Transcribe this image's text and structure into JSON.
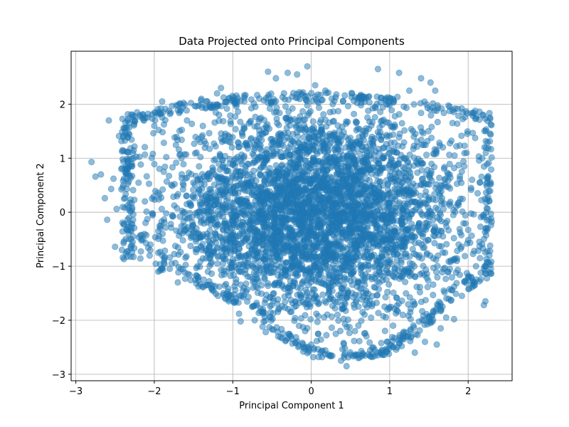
{
  "chart_data": {
    "type": "scatter",
    "title": "Data Projected onto Principal Components",
    "xlabel": "Principal Component 1",
    "ylabel": "Principal Component 2",
    "xlim": [
      -3.06,
      2.56
    ],
    "ylim": [
      -3.12,
      2.98
    ],
    "x_ticks": [
      -3,
      -2,
      -1,
      0,
      1,
      2
    ],
    "y_ticks": [
      -3,
      -2,
      -1,
      0,
      1,
      2
    ],
    "grid": true,
    "marker_color": "#1f77b4",
    "marker_alpha": 0.5,
    "outline_points": [
      [
        -2.8,
        0.93
      ],
      [
        -2.75,
        0.66
      ],
      [
        -2.68,
        0.7
      ],
      [
        -2.63,
        0.26
      ],
      [
        -2.6,
        -0.14
      ],
      [
        -2.58,
        1.7
      ],
      [
        -2.55,
        0.43
      ],
      [
        -2.52,
        0.62
      ],
      [
        -2.5,
        -0.64
      ],
      [
        -2.48,
        0.06
      ],
      [
        -2.45,
        1.41
      ],
      [
        -2.42,
        0.8
      ],
      [
        -2.38,
        1.55
      ],
      [
        -2.35,
        0.43
      ],
      [
        -2.35,
        -0.73
      ],
      [
        -2.3,
        0.01
      ],
      [
        -2.28,
        -0.22
      ],
      [
        -2.25,
        1.68
      ],
      [
        -2.22,
        1.85
      ],
      [
        -2.18,
        -0.43
      ],
      [
        -2.12,
        0.2
      ],
      [
        -2.08,
        1.82
      ],
      [
        -2.05,
        -0.6
      ],
      [
        -2.0,
        1.6
      ],
      [
        -1.95,
        -0.35
      ],
      [
        -1.9,
        -0.8
      ],
      [
        -1.9,
        2.05
      ],
      [
        -1.95,
        -1.1
      ],
      [
        -1.78,
        -0.95
      ],
      [
        -1.72,
        1.98
      ],
      [
        -1.7,
        -1.3
      ],
      [
        -1.55,
        -1.16
      ],
      [
        -1.45,
        -1.0
      ],
      [
        -1.4,
        2.1
      ],
      [
        -1.3,
        -1.28
      ],
      [
        -1.2,
        2.2
      ],
      [
        -1.15,
        2.3
      ],
      [
        -1.12,
        -1.5
      ],
      [
        -1.05,
        -1.65
      ],
      [
        -0.92,
        -1.88
      ],
      [
        -0.9,
        -2.02
      ],
      [
        -0.85,
        2.12
      ],
      [
        -0.72,
        -2.0
      ],
      [
        -0.62,
        -2.12
      ],
      [
        -0.55,
        2.6
      ],
      [
        -0.58,
        -2.22
      ],
      [
        -0.45,
        2.48
      ],
      [
        -0.42,
        -2.3
      ],
      [
        -0.3,
        2.58
      ],
      [
        -0.2,
        -2.42
      ],
      [
        -0.18,
        2.55
      ],
      [
        -0.1,
        -2.5
      ],
      [
        -0.05,
        2.7
      ],
      [
        0.0,
        -2.45
      ],
      [
        0.05,
        2.35
      ],
      [
        0.12,
        -2.6
      ],
      [
        0.18,
        2.25
      ],
      [
        0.25,
        -2.65
      ],
      [
        0.32,
        2.18
      ],
      [
        0.38,
        -2.75
      ],
      [
        0.45,
        -2.85
      ],
      [
        0.52,
        2.2
      ],
      [
        0.6,
        -2.7
      ],
      [
        0.7,
        2.12
      ],
      [
        0.78,
        -2.68
      ],
      [
        0.85,
        2.65
      ],
      [
        0.9,
        -2.55
      ],
      [
        1.0,
        2.05
      ],
      [
        1.05,
        -2.5
      ],
      [
        1.12,
        2.58
      ],
      [
        1.18,
        -2.35
      ],
      [
        1.25,
        2.25
      ],
      [
        1.32,
        -2.6
      ],
      [
        1.4,
        2.48
      ],
      [
        1.45,
        -2.4
      ],
      [
        1.52,
        2.4
      ],
      [
        1.58,
        2.25
      ],
      [
        1.6,
        -2.45
      ],
      [
        1.65,
        -2.15
      ],
      [
        1.72,
        -1.95
      ],
      [
        1.82,
        -1.98
      ],
      [
        1.85,
        1.22
      ],
      [
        1.92,
        -1.55
      ],
      [
        1.95,
        0.85
      ],
      [
        2.0,
        -1.2
      ],
      [
        2.05,
        0.6
      ],
      [
        2.1,
        -1.0
      ],
      [
        2.12,
        0.35
      ],
      [
        2.15,
        -0.85
      ],
      [
        2.18,
        1.0
      ],
      [
        2.2,
        -1.72
      ],
      [
        2.22,
        -1.65
      ],
      [
        2.25,
        -0.3
      ],
      [
        2.28,
        -0.62
      ],
      [
        2.28,
        -0.72
      ],
      [
        2.29,
        -1.05
      ],
      [
        2.2,
        -0.05
      ],
      [
        2.15,
        0.55
      ],
      [
        1.98,
        1.1
      ],
      [
        1.8,
        1.65
      ]
    ]
  }
}
